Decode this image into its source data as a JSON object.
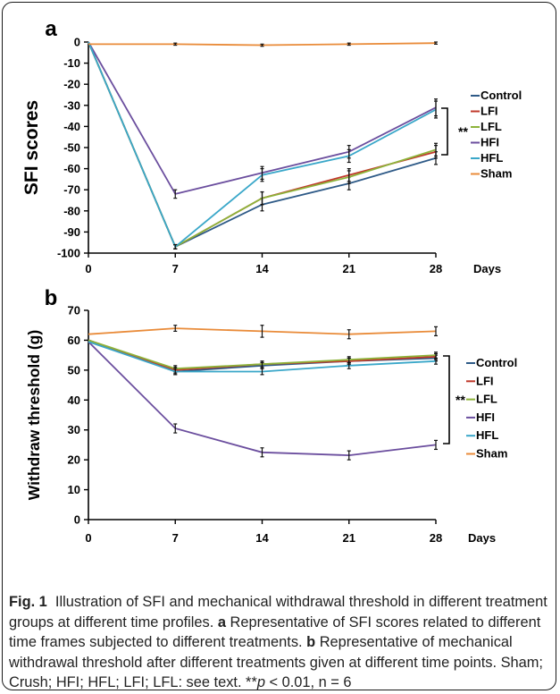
{
  "chart_data": [
    {
      "type": "line",
      "panel_label": "a",
      "title": "",
      "xlabel": "Days",
      "ylabel": "SFI scores",
      "x": [
        0,
        7,
        14,
        21,
        28
      ],
      "x_ticks": [
        "0",
        "7",
        "14",
        "21",
        "28"
      ],
      "ylim": [
        -100,
        0
      ],
      "y_ticks": [
        "0",
        "-10",
        "-20",
        "-30",
        "-40",
        "-50",
        "-60",
        "-70",
        "-80",
        "-90",
        "-100"
      ],
      "grid": false,
      "legend_position": "right",
      "significance": "**",
      "series": [
        {
          "name": "Control",
          "color": "#2e5a87",
          "values": [
            0,
            -97,
            -77,
            -67,
            -55
          ],
          "error": [
            0,
            1,
            3,
            3,
            3
          ]
        },
        {
          "name": "LFI",
          "color": "#c0392b",
          "values": [
            0,
            -97,
            -74,
            -63,
            -52
          ],
          "error": [
            0,
            1,
            3,
            3,
            3
          ]
        },
        {
          "name": "LFL",
          "color": "#8db33a",
          "values": [
            0,
            -97,
            -74,
            -64,
            -51
          ],
          "error": [
            0,
            1,
            3,
            3,
            3
          ]
        },
        {
          "name": "HFI",
          "color": "#6b4e9e",
          "values": [
            0,
            -72,
            -62,
            -52,
            -31
          ],
          "error": [
            0,
            2,
            3,
            3,
            4
          ]
        },
        {
          "name": "HFL",
          "color": "#3aa7c9",
          "values": [
            0,
            -97,
            -63,
            -54,
            -32
          ],
          "error": [
            0,
            1,
            3,
            3,
            4
          ]
        },
        {
          "name": "Sham",
          "color": "#e98b39",
          "values": [
            -1,
            -1,
            -1.5,
            -1,
            -0.5
          ],
          "error": [
            0,
            0.5,
            0.5,
            0.5,
            0.5
          ]
        }
      ]
    },
    {
      "type": "line",
      "panel_label": "b",
      "title": "",
      "xlabel": "Days",
      "ylabel": "Withdraw threshold (g)",
      "x": [
        0,
        7,
        14,
        21,
        28
      ],
      "x_ticks": [
        "0",
        "7",
        "14",
        "21",
        "28"
      ],
      "ylim": [
        0,
        70
      ],
      "y_ticks": [
        "0",
        "10",
        "20",
        "30",
        "40",
        "50",
        "60",
        "70"
      ],
      "grid": false,
      "legend_position": "right",
      "significance": "**",
      "series": [
        {
          "name": "Control",
          "color": "#2e5a87",
          "values": [
            60,
            49.5,
            51.5,
            53,
            54
          ],
          "error": [
            0,
            1,
            1,
            1,
            1
          ]
        },
        {
          "name": "LFI",
          "color": "#c0392b",
          "values": [
            60,
            50,
            52,
            53,
            54.5
          ],
          "error": [
            0,
            1,
            1,
            1,
            1
          ]
        },
        {
          "name": "LFL",
          "color": "#8db33a",
          "values": [
            60,
            50.5,
            52,
            53.5,
            55
          ],
          "error": [
            0,
            1,
            1,
            1,
            1
          ]
        },
        {
          "name": "HFI",
          "color": "#6b4e9e",
          "values": [
            59.5,
            30.5,
            22.5,
            21.5,
            25
          ],
          "error": [
            0,
            1.5,
            1.5,
            1.5,
            1.5
          ]
        },
        {
          "name": "HFL",
          "color": "#3aa7c9",
          "values": [
            59.5,
            49.5,
            49.5,
            51.5,
            53
          ],
          "error": [
            0,
            1,
            1,
            1,
            1
          ]
        },
        {
          "name": "Sham",
          "color": "#e98b39",
          "values": [
            62,
            64,
            63,
            62,
            63
          ],
          "error": [
            0,
            1,
            2,
            1.5,
            1.5
          ]
        }
      ]
    }
  ],
  "caption": {
    "fig_label": "Fig. 1",
    "intro": "Illustration of SFI and mechanical withdrawal threshold in different treatment groups at different time profiles.",
    "a_label": "a",
    "a_text": "Representative of SFI scores related to different time frames subjected to different treatments.",
    "b_label": "b",
    "b_text": "Representative of mechanical withdrawal threshold after different treatments given at different time points. Sham; Crush; HFI; HFL; LFI; LFL: see text. **",
    "p_symbol": "p",
    "stats_tail": " < 0.01, n = 6"
  }
}
